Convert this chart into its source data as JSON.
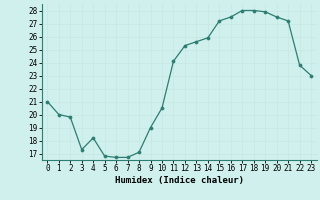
{
  "x": [
    0,
    1,
    2,
    3,
    4,
    5,
    6,
    7,
    8,
    9,
    10,
    11,
    12,
    13,
    14,
    15,
    16,
    17,
    18,
    19,
    20,
    21,
    22,
    23
  ],
  "y": [
    21,
    20,
    19.8,
    17.3,
    18.2,
    16.8,
    16.7,
    16.7,
    17.1,
    19.0,
    20.5,
    24.1,
    25.3,
    25.6,
    25.9,
    27.2,
    27.5,
    28,
    28,
    27.9,
    27.5,
    27.2,
    23.8,
    23.0
  ],
  "line_color": "#2e7d72",
  "marker_color": "#2e7d72",
  "bg_color": "#cff0ec",
  "grid_color": "#b0ddd8",
  "xlabel": "Humidex (Indice chaleur)",
  "ylim": [
    16.5,
    28.5
  ],
  "xlim": [
    -0.5,
    23.5
  ],
  "yticks": [
    17,
    18,
    19,
    20,
    21,
    22,
    23,
    24,
    25,
    26,
    27,
    28
  ],
  "xticks": [
    0,
    1,
    2,
    3,
    4,
    5,
    6,
    7,
    8,
    9,
    10,
    11,
    12,
    13,
    14,
    15,
    16,
    17,
    18,
    19,
    20,
    21,
    22,
    23
  ],
  "tick_fontsize": 5.5,
  "xlabel_fontsize": 6.5
}
